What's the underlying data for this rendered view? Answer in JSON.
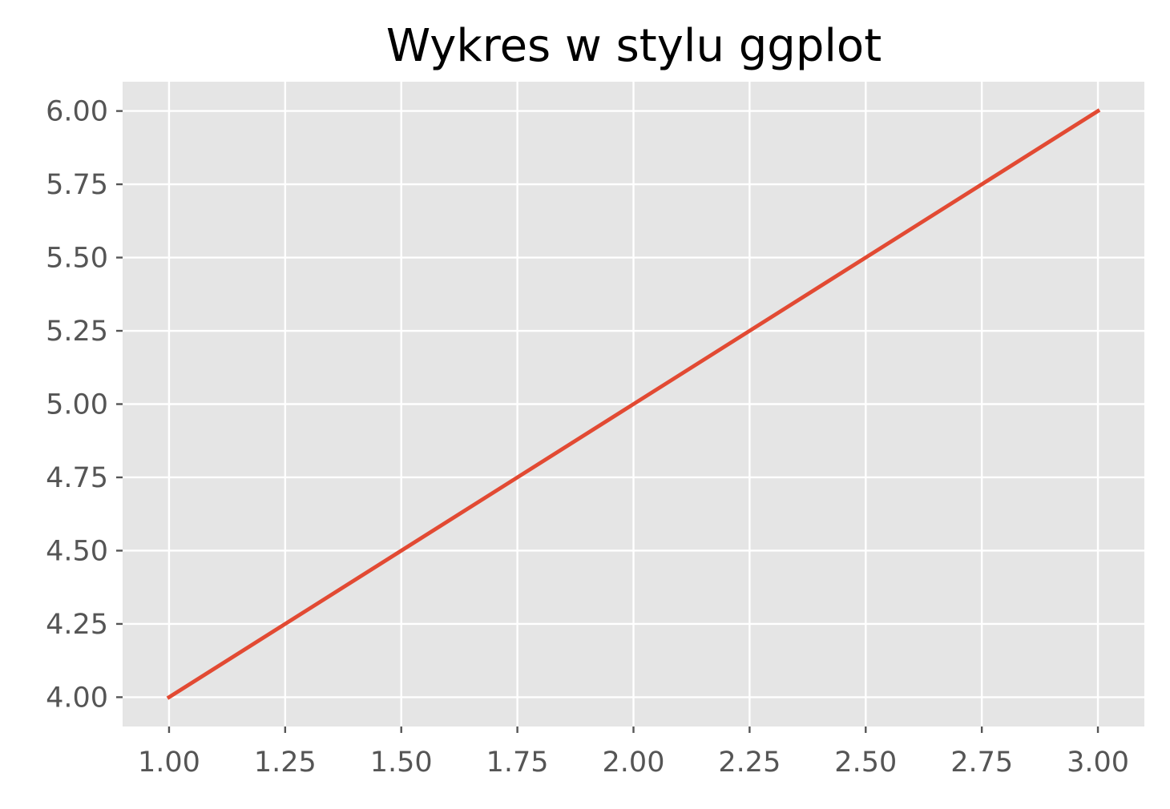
{
  "chart_data": {
    "type": "line",
    "title": "Wykres w stylu ggplot",
    "xlabel": "",
    "ylabel": "",
    "x": [
      1,
      2,
      3
    ],
    "series": [
      {
        "values": [
          4,
          5,
          6
        ],
        "color": "#E24A33"
      }
    ],
    "xlim": [
      0.9,
      3.1
    ],
    "ylim": [
      3.9,
      6.1
    ],
    "xticks": [
      1.0,
      1.25,
      1.5,
      1.75,
      2.0,
      2.25,
      2.5,
      2.75,
      3.0
    ],
    "xtick_labels": [
      "1.00",
      "1.25",
      "1.50",
      "1.75",
      "2.00",
      "2.25",
      "2.50",
      "2.75",
      "3.00"
    ],
    "yticks": [
      4.0,
      4.25,
      4.5,
      4.75,
      5.0,
      5.25,
      5.5,
      5.75,
      6.0
    ],
    "ytick_labels": [
      "4.00",
      "4.25",
      "4.50",
      "4.75",
      "5.00",
      "5.25",
      "5.50",
      "5.75",
      "6.00"
    ],
    "grid": true,
    "style": "ggplot",
    "background_color": "#E5E5E5",
    "grid_color": "#FFFFFF",
    "tick_label_color": "#555555"
  }
}
